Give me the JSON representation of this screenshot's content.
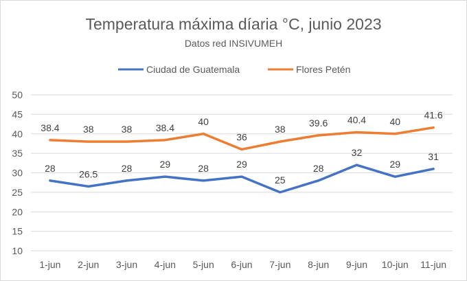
{
  "chart_data": {
    "type": "line",
    "title": "Temperatura  máxima díaria °C, junio 2023",
    "subtitle": "Datos red INSIVUMEH",
    "categories": [
      "1-jun",
      "2-jun",
      "3-jun",
      "4-jun",
      "5-jun",
      "6-jun",
      "7-jun",
      "8-jun",
      "9-jun",
      "10-jun",
      "11-jun"
    ],
    "series": [
      {
        "name": "Ciudad de Guatemala",
        "color": "#4472c4",
        "values": [
          28,
          26.5,
          28,
          29,
          28,
          29,
          25,
          28,
          32,
          29,
          31
        ],
        "labels": [
          "28",
          "26.5",
          "28",
          "29",
          "28",
          "29",
          "25",
          "28",
          "32",
          "29",
          "31"
        ]
      },
      {
        "name": "Flores Petén",
        "color": "#ed7d31",
        "values": [
          38.4,
          38,
          38,
          38.4,
          40,
          36,
          38,
          39.6,
          40.4,
          40,
          41.6
        ],
        "labels": [
          "38.4",
          "38",
          "38",
          "38.4",
          "40",
          "36",
          "38",
          "39.6",
          "40.4",
          "40",
          "41.6"
        ]
      }
    ],
    "yticks": [
      "10",
      "15",
      "20",
      "25",
      "30",
      "35",
      "40",
      "45",
      "50"
    ],
    "ylim": [
      10,
      50
    ],
    "grid": true,
    "legend": "top"
  }
}
